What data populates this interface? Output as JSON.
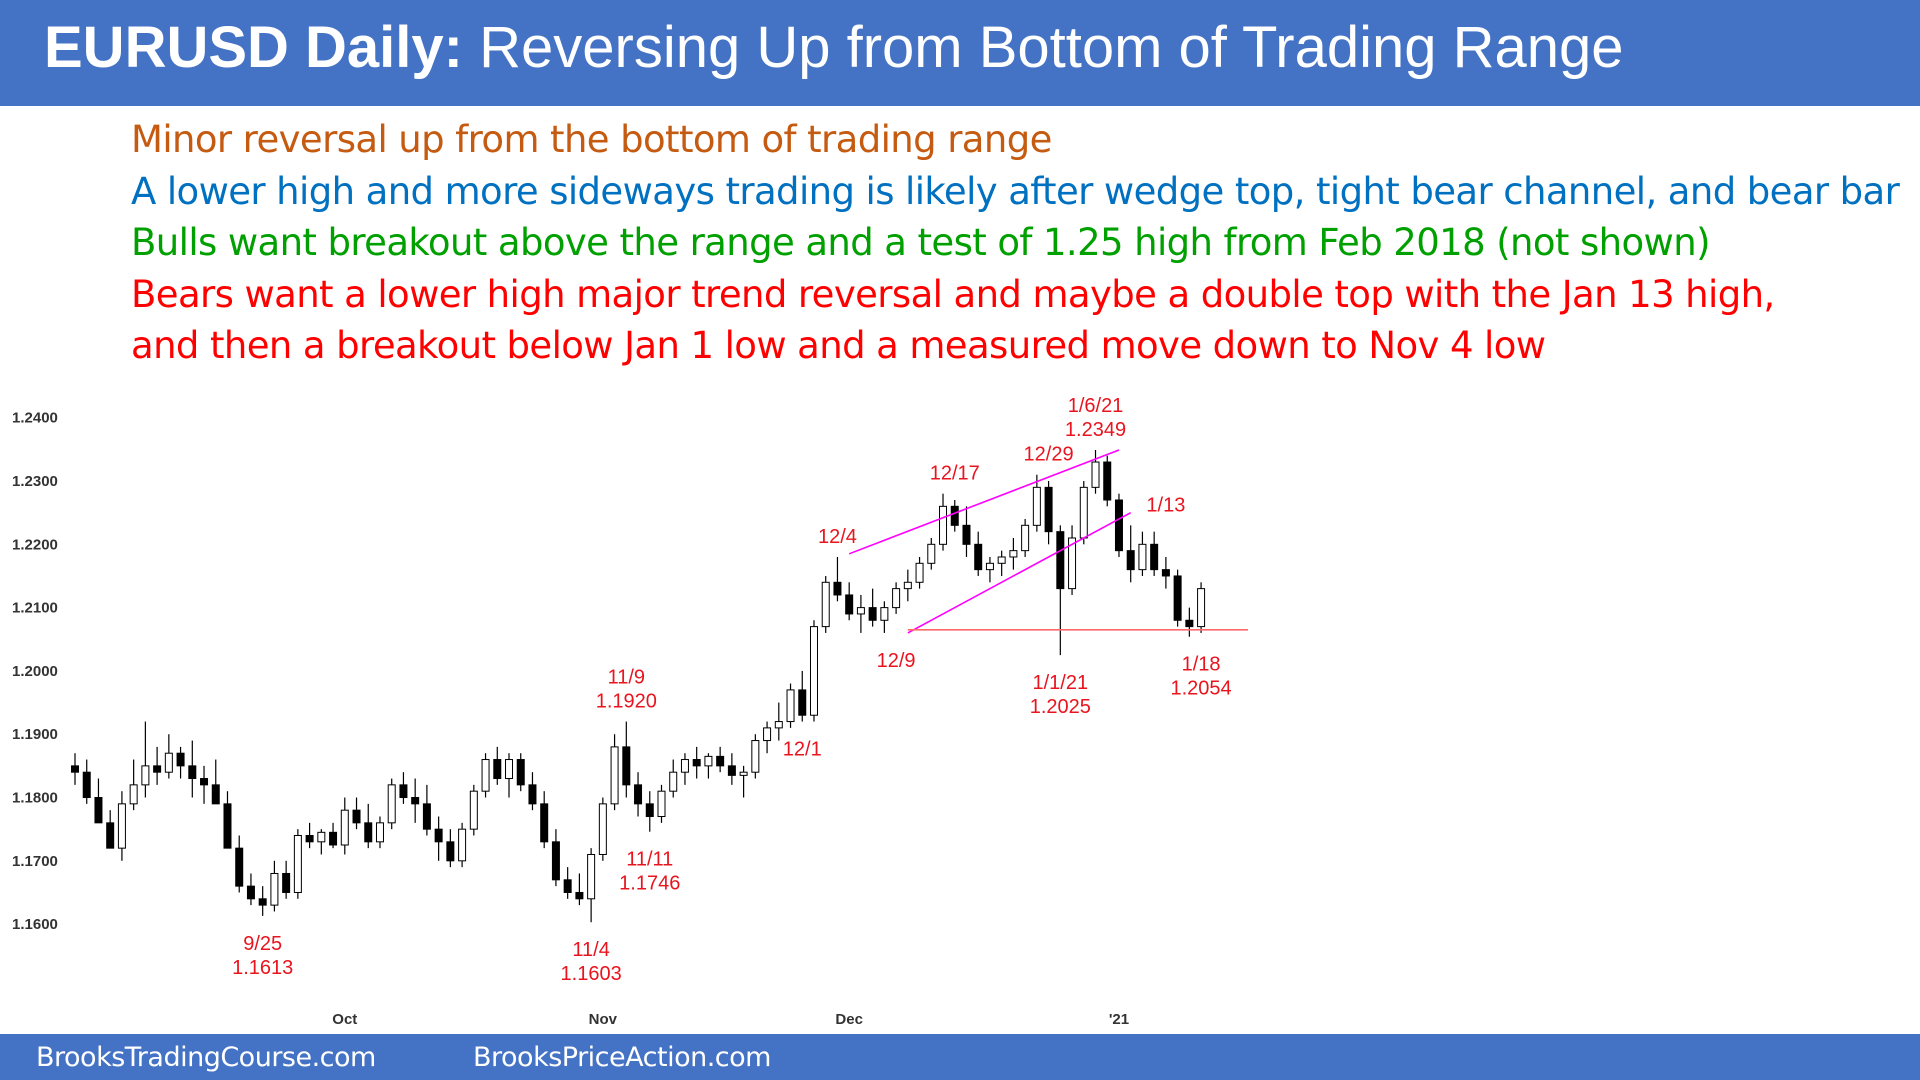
{
  "title": {
    "bold": "EURUSD Daily:",
    "rest": " Reversing Up from Bottom of Trading Range"
  },
  "comments": [
    {
      "text": "Minor reversal up from the bottom of trading range",
      "color": "#c55a11"
    },
    {
      "text": "A lower high and more sideways trading is likely after wedge top, tight bear channel, and bear bar",
      "color": "#0070c0"
    },
    {
      "text": "Bulls want breakout above the range and a test of 1.25 high from Feb 2018 (not shown)",
      "color": "#00a000"
    },
    {
      "text": "Bears want a lower high major trend reversal and maybe a double top with the Jan 13 high,",
      "color": "#ff0000"
    },
    {
      "text": "and then a breakout below Jan 1 low and a measured move down to Nov 4 low",
      "color": "#ff0000"
    }
  ],
  "footer": {
    "left": "BrooksTradingCourse.com",
    "right": "BrooksPriceAction.com"
  },
  "chart_data": {
    "type": "candlestick",
    "ylim": [
      1.555,
      1.2525
    ],
    "yticks": [
      "1.2400",
      "1.2300",
      "1.2200",
      "1.2100",
      "1.2000",
      "1.1900",
      "1.1800",
      "1.1700",
      "1.1600"
    ],
    "xticks": [
      {
        "label": "Oct",
        "bar": 23
      },
      {
        "label": "Nov",
        "bar": 45
      },
      {
        "label": "Dec",
        "bar": 66
      },
      {
        "label": "'21",
        "bar": 89
      }
    ],
    "bullish_color": "#ffffff",
    "bearish_color": "#000000",
    "bars": [
      [
        1.185,
        1.187,
        1.182,
        1.184
      ],
      [
        1.184,
        1.186,
        1.179,
        1.18
      ],
      [
        1.18,
        1.183,
        1.177,
        1.176
      ],
      [
        1.176,
        1.178,
        1.173,
        1.172
      ],
      [
        1.172,
        1.181,
        1.17,
        1.179
      ],
      [
        1.179,
        1.186,
        1.178,
        1.182
      ],
      [
        1.182,
        1.192,
        1.18,
        1.185
      ],
      [
        1.185,
        1.188,
        1.182,
        1.184
      ],
      [
        1.184,
        1.19,
        1.183,
        1.187
      ],
      [
        1.187,
        1.188,
        1.183,
        1.185
      ],
      [
        1.185,
        1.189,
        1.18,
        1.183
      ],
      [
        1.183,
        1.185,
        1.179,
        1.182
      ],
      [
        1.182,
        1.186,
        1.18,
        1.179
      ],
      [
        1.179,
        1.181,
        1.172,
        1.172
      ],
      [
        1.172,
        1.174,
        1.165,
        1.166
      ],
      [
        1.166,
        1.168,
        1.163,
        1.164
      ],
      [
        1.164,
        1.166,
        1.1613,
        1.163
      ],
      [
        1.163,
        1.17,
        1.162,
        1.168
      ],
      [
        1.168,
        1.17,
        1.164,
        1.165
      ],
      [
        1.165,
        1.175,
        1.164,
        1.174
      ],
      [
        1.174,
        1.176,
        1.172,
        1.173
      ],
      [
        1.173,
        1.175,
        1.171,
        1.1745
      ],
      [
        1.1745,
        1.176,
        1.172,
        1.1725
      ],
      [
        1.1725,
        1.18,
        1.171,
        1.178
      ],
      [
        1.178,
        1.18,
        1.175,
        1.176
      ],
      [
        1.176,
        1.179,
        1.172,
        1.173
      ],
      [
        1.173,
        1.177,
        1.172,
        1.176
      ],
      [
        1.176,
        1.183,
        1.175,
        1.182
      ],
      [
        1.182,
        1.184,
        1.179,
        1.18
      ],
      [
        1.18,
        1.183,
        1.176,
        1.179
      ],
      [
        1.179,
        1.182,
        1.174,
        1.175
      ],
      [
        1.175,
        1.177,
        1.17,
        1.173
      ],
      [
        1.173,
        1.175,
        1.169,
        1.17
      ],
      [
        1.17,
        1.176,
        1.169,
        1.175
      ],
      [
        1.175,
        1.182,
        1.174,
        1.181
      ],
      [
        1.181,
        1.187,
        1.18,
        1.186
      ],
      [
        1.186,
        1.188,
        1.182,
        1.183
      ],
      [
        1.183,
        1.187,
        1.18,
        1.186
      ],
      [
        1.186,
        1.187,
        1.181,
        1.182
      ],
      [
        1.182,
        1.184,
        1.178,
        1.179
      ],
      [
        1.179,
        1.181,
        1.172,
        1.173
      ],
      [
        1.173,
        1.175,
        1.166,
        1.167
      ],
      [
        1.167,
        1.169,
        1.164,
        1.165
      ],
      [
        1.165,
        1.168,
        1.163,
        1.164
      ],
      [
        1.164,
        1.172,
        1.1603,
        1.171
      ],
      [
        1.171,
        1.18,
        1.17,
        1.179
      ],
      [
        1.179,
        1.19,
        1.178,
        1.188
      ],
      [
        1.188,
        1.192,
        1.18,
        1.182
      ],
      [
        1.182,
        1.184,
        1.177,
        1.179
      ],
      [
        1.179,
        1.181,
        1.1746,
        1.177
      ],
      [
        1.177,
        1.182,
        1.176,
        1.181
      ],
      [
        1.181,
        1.186,
        1.18,
        1.184
      ],
      [
        1.184,
        1.187,
        1.182,
        1.186
      ],
      [
        1.186,
        1.188,
        1.183,
        1.185
      ],
      [
        1.185,
        1.187,
        1.183,
        1.1865
      ],
      [
        1.1865,
        1.188,
        1.184,
        1.185
      ],
      [
        1.185,
        1.187,
        1.182,
        1.1835
      ],
      [
        1.1835,
        1.185,
        1.18,
        1.184
      ],
      [
        1.184,
        1.19,
        1.183,
        1.189
      ],
      [
        1.189,
        1.192,
        1.187,
        1.191
      ],
      [
        1.191,
        1.195,
        1.189,
        1.192
      ],
      [
        1.192,
        1.198,
        1.191,
        1.197
      ],
      [
        1.197,
        1.2,
        1.192,
        1.193
      ],
      [
        1.193,
        1.208,
        1.192,
        1.207
      ],
      [
        1.207,
        1.215,
        1.206,
        1.214
      ],
      [
        1.214,
        1.218,
        1.211,
        1.212
      ],
      [
        1.212,
        1.214,
        1.208,
        1.209
      ],
      [
        1.209,
        1.212,
        1.206,
        1.21
      ],
      [
        1.21,
        1.213,
        1.207,
        1.208
      ],
      [
        1.208,
        1.211,
        1.206,
        1.21
      ],
      [
        1.21,
        1.214,
        1.209,
        1.213
      ],
      [
        1.213,
        1.216,
        1.211,
        1.214
      ],
      [
        1.214,
        1.218,
        1.213,
        1.217
      ],
      [
        1.217,
        1.221,
        1.216,
        1.22
      ],
      [
        1.22,
        1.228,
        1.219,
        1.226
      ],
      [
        1.226,
        1.227,
        1.222,
        1.223
      ],
      [
        1.223,
        1.226,
        1.218,
        1.22
      ],
      [
        1.22,
        1.222,
        1.215,
        1.216
      ],
      [
        1.216,
        1.218,
        1.214,
        1.217
      ],
      [
        1.217,
        1.219,
        1.215,
        1.218
      ],
      [
        1.218,
        1.221,
        1.216,
        1.219
      ],
      [
        1.219,
        1.224,
        1.218,
        1.223
      ],
      [
        1.223,
        1.231,
        1.222,
        1.229
      ],
      [
        1.229,
        1.23,
        1.22,
        1.222
      ],
      [
        1.222,
        1.223,
        1.2025,
        1.213
      ],
      [
        1.213,
        1.223,
        1.212,
        1.221
      ],
      [
        1.221,
        1.23,
        1.22,
        1.229
      ],
      [
        1.229,
        1.2349,
        1.228,
        1.233
      ],
      [
        1.233,
        1.234,
        1.226,
        1.227
      ],
      [
        1.227,
        1.228,
        1.218,
        1.219
      ],
      [
        1.219,
        1.223,
        1.214,
        1.216
      ],
      [
        1.216,
        1.222,
        1.215,
        1.22
      ],
      [
        1.22,
        1.222,
        1.215,
        1.216
      ],
      [
        1.216,
        1.218,
        1.213,
        1.215
      ],
      [
        1.215,
        1.216,
        1.207,
        1.208
      ],
      [
        1.208,
        1.21,
        1.2054,
        1.207
      ],
      [
        1.207,
        1.214,
        1.206,
        1.213
      ]
    ],
    "trendlines": [
      {
        "color": "#ff00ff",
        "from": [
          66,
          1.2185
        ],
        "to": [
          89,
          1.2349
        ]
      },
      {
        "color": "#ff00ff",
        "from": [
          71,
          1.206
        ],
        "to": [
          90,
          1.225
        ]
      },
      {
        "color": "#ff6b6b",
        "from": [
          71,
          1.2065
        ],
        "to": [
          100,
          1.2065
        ]
      }
    ],
    "annotations": [
      {
        "text": "9/25",
        "bar": 16,
        "price": 1.1613,
        "position": "below",
        "line": 1
      },
      {
        "text": "1.1613",
        "bar": 16,
        "price": 1.1613,
        "position": "below",
        "line": 2
      },
      {
        "text": "11/4",
        "bar": 44,
        "price": 1.1603,
        "position": "below",
        "line": 1
      },
      {
        "text": "1.1603",
        "bar": 44,
        "price": 1.1603,
        "position": "below",
        "line": 2
      },
      {
        "text": "11/9",
        "bar": 47,
        "price": 1.192,
        "position": "above",
        "line": 2
      },
      {
        "text": "1.1920",
        "bar": 47,
        "price": 1.192,
        "position": "above",
        "line": 1
      },
      {
        "text": "11/11",
        "bar": 49,
        "price": 1.1746,
        "position": "below",
        "line": 1
      },
      {
        "text": "1.1746",
        "bar": 49,
        "price": 1.1746,
        "position": "below",
        "line": 2
      },
      {
        "text": "12/1",
        "bar": 62,
        "price": 1.192,
        "position": "below",
        "line": 1
      },
      {
        "text": "12/4",
        "bar": 65,
        "price": 1.218,
        "position": "above",
        "line": 1
      },
      {
        "text": "12/9",
        "bar": 70,
        "price": 1.206,
        "position": "below",
        "line": 1
      },
      {
        "text": "12/17",
        "bar": 75,
        "price": 1.228,
        "position": "above",
        "line": 1
      },
      {
        "text": "12/29",
        "bar": 83,
        "price": 1.231,
        "position": "above",
        "line": 1
      },
      {
        "text": "1/6/21",
        "bar": 87,
        "price": 1.2349,
        "position": "above",
        "line": 2
      },
      {
        "text": "1.2349",
        "bar": 87,
        "price": 1.2349,
        "position": "above",
        "line": 1
      },
      {
        "text": "1/13",
        "bar": 93,
        "price": 1.223,
        "position": "above",
        "line": 1
      },
      {
        "text": "1/1/21",
        "bar": 84,
        "price": 1.2025,
        "position": "below",
        "line": 1
      },
      {
        "text": "1.2025",
        "bar": 84,
        "price": 1.2025,
        "position": "below",
        "line": 2
      },
      {
        "text": "1/18",
        "bar": 96,
        "price": 1.2054,
        "position": "below",
        "line": 1
      },
      {
        "text": "1.2054",
        "bar": 96,
        "price": 1.2054,
        "position": "below",
        "line": 2
      }
    ]
  }
}
